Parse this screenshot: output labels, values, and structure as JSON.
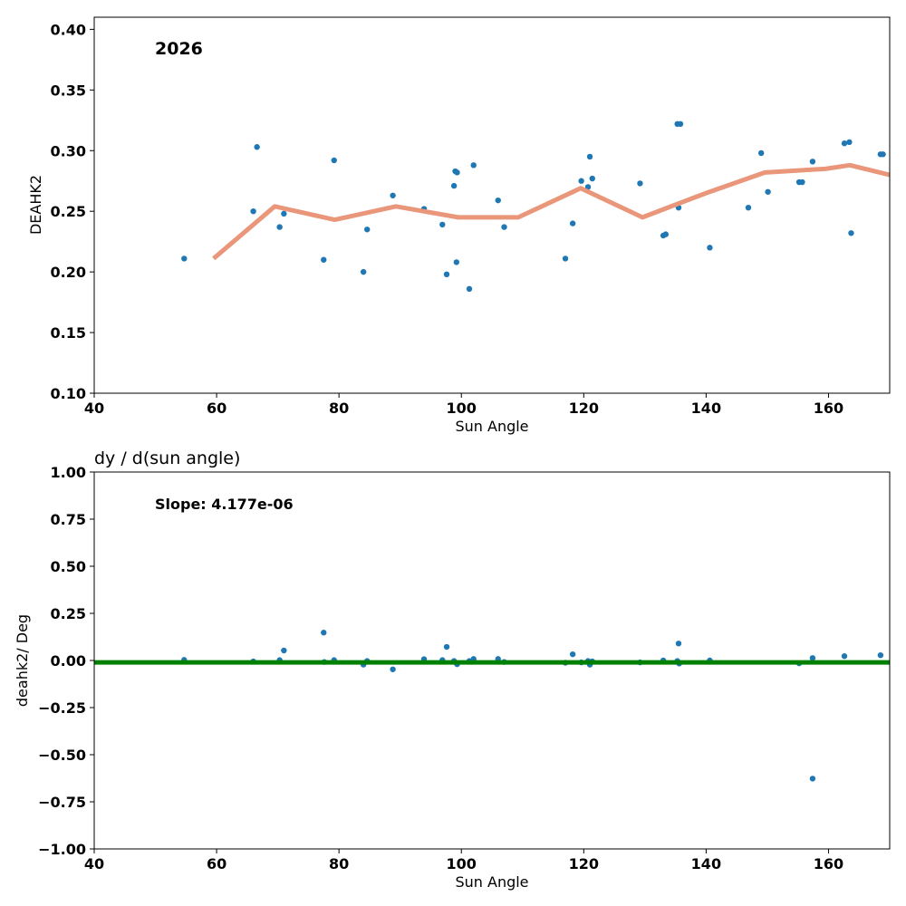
{
  "chart_data": [
    {
      "type": "scatter",
      "title": "",
      "annotation": "2026",
      "xlabel": "Sun Angle",
      "ylabel": "DEAHK2",
      "xlim": [
        40,
        170
      ],
      "ylim": [
        0.1,
        0.41
      ],
      "xticks": [
        40,
        60,
        80,
        100,
        120,
        140,
        160
      ],
      "yticks": [
        0.1,
        0.15,
        0.2,
        0.25,
        0.3,
        0.35,
        0.4
      ],
      "xtick_labels": [
        "40",
        "60",
        "80",
        "100",
        "120",
        "140",
        "160"
      ],
      "ytick_labels": [
        "0.10",
        "0.15",
        "0.20",
        "0.25",
        "0.30",
        "0.35",
        "0.40"
      ],
      "points_color": "#1f77b4",
      "line_color": "#e9967a",
      "points": [
        [
          54.7,
          0.211
        ],
        [
          66.0,
          0.25
        ],
        [
          66.6,
          0.303
        ],
        [
          70.3,
          0.237
        ],
        [
          71.0,
          0.248
        ],
        [
          77.5,
          0.21
        ],
        [
          79.2,
          0.292
        ],
        [
          84.0,
          0.2
        ],
        [
          84.6,
          0.235
        ],
        [
          88.8,
          0.263
        ],
        [
          93.9,
          0.252
        ],
        [
          96.9,
          0.239
        ],
        [
          97.6,
          0.198
        ],
        [
          98.8,
          0.271
        ],
        [
          99.0,
          0.283
        ],
        [
          99.3,
          0.282
        ],
        [
          99.2,
          0.208
        ],
        [
          101.3,
          0.186
        ],
        [
          102.0,
          0.288
        ],
        [
          106.0,
          0.259
        ],
        [
          107.0,
          0.237
        ],
        [
          117.0,
          0.211
        ],
        [
          118.2,
          0.24
        ],
        [
          119.6,
          0.275
        ],
        [
          120.7,
          0.27
        ],
        [
          121.0,
          0.295
        ],
        [
          121.4,
          0.277
        ],
        [
          129.2,
          0.273
        ],
        [
          133.0,
          0.23
        ],
        [
          133.4,
          0.231
        ],
        [
          135.3,
          0.322
        ],
        [
          135.8,
          0.322
        ],
        [
          135.5,
          0.253
        ],
        [
          140.6,
          0.22
        ],
        [
          146.9,
          0.253
        ],
        [
          149.0,
          0.298
        ],
        [
          150.1,
          0.266
        ],
        [
          155.2,
          0.274
        ],
        [
          155.7,
          0.274
        ],
        [
          157.4,
          0.291
        ],
        [
          162.6,
          0.306
        ],
        [
          163.4,
          0.307
        ],
        [
          163.7,
          0.232
        ],
        [
          168.5,
          0.297
        ],
        [
          168.9,
          0.297
        ]
      ],
      "trend_line": [
        [
          59.5,
          0.211
        ],
        [
          69.5,
          0.254
        ],
        [
          79.3,
          0.243
        ],
        [
          89.3,
          0.254
        ],
        [
          99.5,
          0.245
        ],
        [
          109.3,
          0.245
        ],
        [
          119.5,
          0.269
        ],
        [
          129.6,
          0.245
        ],
        [
          140.0,
          0.265
        ],
        [
          149.6,
          0.282
        ],
        [
          159.5,
          0.285
        ],
        [
          163.5,
          0.288
        ],
        [
          170.0,
          0.28
        ]
      ]
    },
    {
      "type": "scatter",
      "title": "dy / d(sun angle)",
      "annotation": "Slope: 4.177e-06",
      "xlabel": "Sun Angle",
      "ylabel": "deahk2/ Deg",
      "xlim": [
        40,
        170
      ],
      "ylim": [
        -1.0,
        1.0
      ],
      "xticks": [
        40,
        60,
        80,
        100,
        120,
        140,
        160
      ],
      "yticks": [
        -1.0,
        -0.75,
        -0.5,
        -0.25,
        0.0,
        0.25,
        0.5,
        0.75,
        1.0
      ],
      "xtick_labels": [
        "40",
        "60",
        "80",
        "100",
        "120",
        "140",
        "160"
      ],
      "ytick_labels": [
        "−1.00",
        "−0.75",
        "−0.50",
        "−0.25",
        "0.00",
        "0.25",
        "0.50",
        "0.75",
        "1.00"
      ],
      "points_color": "#1f77b4",
      "line_color": "#008000",
      "points": [
        [
          54.7,
          0.003
        ],
        [
          66.0,
          -0.005
        ],
        [
          70.3,
          0.002
        ],
        [
          71.0,
          0.053
        ],
        [
          77.5,
          0.148
        ],
        [
          77.6,
          -0.008
        ],
        [
          79.2,
          0.002
        ],
        [
          84.0,
          -0.022
        ],
        [
          84.6,
          -0.003
        ],
        [
          88.8,
          -0.047
        ],
        [
          93.9,
          0.007
        ],
        [
          96.9,
          0.002
        ],
        [
          97.6,
          0.072
        ],
        [
          98.8,
          -0.003
        ],
        [
          99.3,
          -0.02
        ],
        [
          101.3,
          -0.003
        ],
        [
          102.0,
          0.008
        ],
        [
          106.0,
          0.008
        ],
        [
          107.0,
          -0.008
        ],
        [
          117.0,
          -0.012
        ],
        [
          118.2,
          0.033
        ],
        [
          119.6,
          -0.01
        ],
        [
          120.7,
          -0.003
        ],
        [
          121.0,
          -0.022
        ],
        [
          121.4,
          -0.005
        ],
        [
          129.2,
          -0.01
        ],
        [
          133.0,
          0.0
        ],
        [
          135.3,
          -0.003
        ],
        [
          135.5,
          0.09
        ],
        [
          135.6,
          -0.016
        ],
        [
          140.6,
          0.0
        ],
        [
          155.2,
          -0.015
        ],
        [
          157.4,
          0.013
        ],
        [
          157.4,
          -0.627
        ],
        [
          162.6,
          0.023
        ],
        [
          168.5,
          0.028
        ]
      ],
      "trend_line": [
        [
          40,
          -0.01
        ],
        [
          170,
          -0.01
        ]
      ]
    }
  ]
}
